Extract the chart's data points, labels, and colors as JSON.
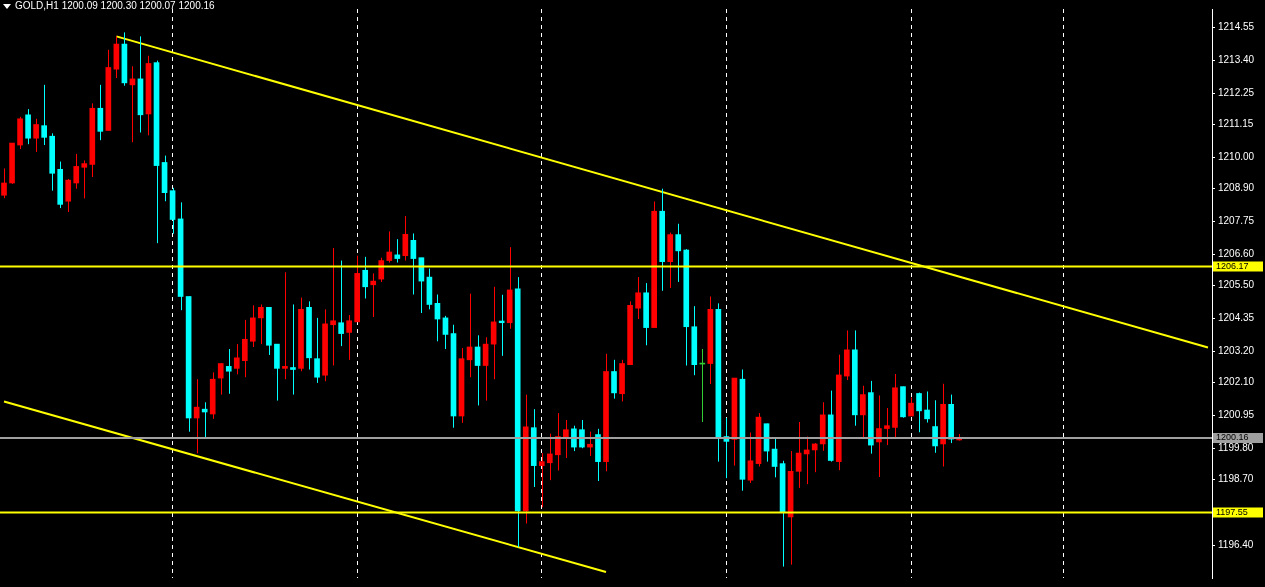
{
  "chart_data": {
    "type": "candlestick",
    "title": "GOLD,H1 1200.09 1200.30 1200.07 1200.16",
    "categories": [
      null,
      null,
      null,
      null,
      null,
      null,
      null,
      null,
      null,
      null,
      null,
      null,
      null,
      null,
      null,
      null,
      null,
      null,
      null,
      null,
      null,
      null,
      null,
      null,
      null,
      null,
      null,
      null,
      null,
      null,
      null,
      null,
      null,
      null,
      null,
      null,
      null,
      null,
      null,
      null,
      null,
      null,
      null,
      null,
      null,
      null,
      null,
      null,
      null,
      null,
      null,
      null,
      null,
      null,
      null,
      null,
      null,
      null,
      null,
      null,
      null,
      null,
      null,
      null,
      null,
      null,
      null,
      null,
      null,
      null,
      null,
      null,
      null,
      null,
      null,
      null,
      null,
      null,
      null,
      null,
      null,
      null,
      null,
      null,
      null,
      null,
      null,
      null,
      null,
      null,
      null,
      null,
      null,
      null,
      null,
      null,
      null,
      null,
      null,
      null,
      null,
      null,
      null,
      null,
      null,
      null,
      null,
      null,
      null,
      null,
      null,
      null,
      null,
      null,
      null,
      null,
      null,
      null,
      null,
      null,
      null,
      null,
      null,
      null,
      null,
      null,
      null,
      null,
      null,
      null,
      null,
      null,
      null,
      null,
      null,
      null,
      null,
      null,
      null,
      null,
      null,
      null,
      null,
      null,
      null,
      null,
      null,
      null,
      null,
      null,
      null
    ],
    "ohlc": [
      [
        1208.67,
        1209.61,
        1208.57,
        1209.1
      ],
      [
        1209.1,
        1210.5,
        1209.07,
        1210.5
      ],
      [
        1210.43,
        1211.42,
        1210.29,
        1211.35
      ],
      [
        1211.49,
        1211.69,
        1210.46,
        1210.67
      ],
      [
        1210.67,
        1211.35,
        1210.19,
        1211.15
      ],
      [
        1211.11,
        1212.54,
        1210.43,
        1210.7
      ],
      [
        1210.74,
        1210.84,
        1208.83,
        1209.44
      ],
      [
        1209.58,
        1209.85,
        1208.22,
        1208.35
      ],
      [
        1208.46,
        1209.24,
        1208.08,
        1209.2
      ],
      [
        1209.1,
        1210.12,
        1208.9,
        1209.68
      ],
      [
        1209.65,
        1209.89,
        1208.56,
        1209.78
      ],
      [
        1209.75,
        1211.89,
        1209.31,
        1211.72
      ],
      [
        1211.72,
        1212.54,
        1210.6,
        1210.91
      ],
      [
        1210.94,
        1213.77,
        1210.94,
        1213.15
      ],
      [
        1213.09,
        1214.24,
        1212.78,
        1213.97
      ],
      [
        1213.97,
        1214.38,
        1212.51,
        1212.61
      ],
      [
        1212.54,
        1213.19,
        1210.53,
        1212.75
      ],
      [
        1212.75,
        1214.24,
        1210.87,
        1211.49
      ],
      [
        1211.52,
        1213.56,
        1210.77,
        1213.29
      ],
      [
        1213.32,
        1213.39,
        1206.99,
        1209.71
      ],
      [
        1209.82,
        1210.06,
        1208.46,
        1208.76
      ],
      [
        1208.83,
        1208.93,
        1207.32,
        1207.82
      ],
      [
        1207.84,
        1208.42,
        1204.64,
        1205.12
      ],
      [
        1205.12,
        1205.12,
        1200.38,
        1200.86
      ],
      [
        1200.86,
        1202.22,
        1199.62,
        1201.24
      ],
      [
        1201.17,
        1201.41,
        1200.18,
        1201.07
      ],
      [
        1201.0,
        1202.46,
        1200.83,
        1202.22
      ],
      [
        1202.26,
        1202.77,
        1201.68,
        1202.77
      ],
      [
        1202.67,
        1203.28,
        1201.71,
        1202.5
      ],
      [
        1202.6,
        1203.45,
        1202.39,
        1202.97
      ],
      [
        1202.87,
        1204.3,
        1202.29,
        1203.62
      ],
      [
        1203.55,
        1204.81,
        1203.35,
        1204.37
      ],
      [
        1204.37,
        1204.84,
        1203.45,
        1204.74
      ],
      [
        1204.74,
        1204.74,
        1203.07,
        1203.41
      ],
      [
        1203.45,
        1203.45,
        1201.47,
        1202.6
      ],
      [
        1202.6,
        1205.97,
        1202.22,
        1202.67
      ],
      [
        1202.63,
        1204.84,
        1201.68,
        1202.56
      ],
      [
        1202.6,
        1205.08,
        1202.5,
        1204.67
      ],
      [
        1204.74,
        1204.95,
        1202.56,
        1202.97
      ],
      [
        1202.94,
        1204.37,
        1202.09,
        1202.29
      ],
      [
        1202.36,
        1204.67,
        1202.15,
        1204.16
      ],
      [
        1204.13,
        1206.82,
        1202.7,
        1204.27
      ],
      [
        1204.2,
        1206.38,
        1203.38,
        1203.82
      ],
      [
        1203.86,
        1204.47,
        1202.9,
        1204.27
      ],
      [
        1204.23,
        1206.55,
        1204.23,
        1205.93
      ],
      [
        1206.04,
        1206.51,
        1205.05,
        1205.46
      ],
      [
        1205.53,
        1205.93,
        1204.4,
        1205.66
      ],
      [
        1205.73,
        1206.48,
        1205.63,
        1206.38
      ],
      [
        1206.38,
        1207.4,
        1206.31,
        1206.68
      ],
      [
        1206.58,
        1207.13,
        1206.31,
        1206.45
      ],
      [
        1206.55,
        1207.94,
        1206.38,
        1207.3
      ],
      [
        1207.09,
        1207.33,
        1205.19,
        1206.45
      ],
      [
        1206.48,
        1206.48,
        1204.54,
        1205.66
      ],
      [
        1205.8,
        1206.1,
        1204.67,
        1204.84
      ],
      [
        1204.88,
        1205.19,
        1203.55,
        1204.33
      ],
      [
        1204.37,
        1204.44,
        1203.28,
        1203.79
      ],
      [
        1203.82,
        1204.13,
        1200.52,
        1200.93
      ],
      [
        1200.93,
        1203.31,
        1200.69,
        1202.94
      ],
      [
        1202.9,
        1205.22,
        1202.29,
        1203.35
      ],
      [
        1203.35,
        1203.76,
        1201.3,
        1202.7
      ],
      [
        1202.7,
        1203.69,
        1201.47,
        1203.45
      ],
      [
        1203.45,
        1205.46,
        1202.22,
        1204.23
      ],
      [
        1204.26,
        1205.18,
        1203.04,
        1204.2
      ],
      [
        1204.2,
        1206.85,
        1203.99,
        1205.35
      ],
      [
        1205.39,
        1205.8,
        1196.33,
        1197.6
      ],
      [
        1197.6,
        1201.68,
        1197.16,
        1200.55
      ],
      [
        1200.52,
        1201.17,
        1198.44,
        1199.19
      ],
      [
        1199.19,
        1199.63,
        1197.73,
        1199.33
      ],
      [
        1199.29,
        1200.31,
        1198.68,
        1199.6
      ],
      [
        1199.57,
        1201.03,
        1199.02,
        1200.21
      ],
      [
        1200.18,
        1200.79,
        1199.46,
        1200.45
      ],
      [
        1200.48,
        1200.59,
        1199.7,
        1199.84
      ],
      [
        1200.45,
        1200.79,
        1199.8,
        1199.84
      ],
      [
        1199.84,
        1200.38,
        1199.53,
        1199.94
      ],
      [
        1200.28,
        1200.48,
        1198.65,
        1199.33
      ],
      [
        1199.33,
        1203.11,
        1198.99,
        1202.49
      ],
      [
        1202.49,
        1202.9,
        1201.54,
        1201.74
      ],
      [
        1201.71,
        1202.9,
        1201.44,
        1202.77
      ],
      [
        1202.73,
        1204.95,
        1202.73,
        1204.81
      ],
      [
        1204.71,
        1205.8,
        1204.33,
        1205.25
      ],
      [
        1205.25,
        1205.59,
        1203.41,
        1204.03
      ],
      [
        1204.03,
        1208.45,
        1204.03,
        1208.11
      ],
      [
        1208.11,
        1208.9,
        1205.32,
        1206.34
      ],
      [
        1206.34,
        1207.36,
        1205.42,
        1207.29
      ],
      [
        1207.29,
        1207.67,
        1205.63,
        1206.72
      ],
      [
        1206.75,
        1206.78,
        1202.7,
        1204.06
      ],
      [
        1204.06,
        1204.78,
        1202.36,
        1202.73
      ],
      [
        1202.75,
        1203.28,
        1200.72,
        1202.75
      ],
      [
        1202.77,
        1205.12,
        1202.05,
        1204.67
      ],
      [
        1204.67,
        1204.88,
        1199.33,
        1200.18
      ],
      [
        1200.21,
        1200.86,
        1198.75,
        1200.04
      ],
      [
        1200.11,
        1202.26,
        1199.19,
        1202.26
      ],
      [
        1202.22,
        1202.56,
        1198.31,
        1198.71
      ],
      [
        1198.68,
        1200.35,
        1198.58,
        1199.36
      ],
      [
        1199.26,
        1201.03,
        1199.16,
        1200.89
      ],
      [
        1200.66,
        1200.66,
        1199.33,
        1199.7
      ],
      [
        1199.77,
        1200.18,
        1198.78,
        1199.16
      ],
      [
        1199.26,
        1199.36,
        1195.65,
        1197.56
      ],
      [
        1197.39,
        1199.7,
        1195.72,
        1198.99
      ],
      [
        1198.99,
        1200.72,
        1198.41,
        1199.63
      ],
      [
        1199.6,
        1200.21,
        1198.54,
        1199.74
      ],
      [
        1199.74,
        1199.98,
        1198.96,
        1199.95
      ],
      [
        1199.95,
        1201.41,
        1199.71,
        1200.97
      ],
      [
        1200.97,
        1201.82,
        1199.33,
        1199.37
      ],
      [
        1199.33,
        1203.08,
        1199.03,
        1202.37
      ],
      [
        1202.33,
        1203.93,
        1202.19,
        1203.25
      ],
      [
        1203.25,
        1203.93,
        1200.59,
        1200.97
      ],
      [
        1200.97,
        1201.99,
        1200.19,
        1201.68
      ],
      [
        1201.75,
        1202.16,
        1199.61,
        1199.91
      ],
      [
        1200.02,
        1201.65,
        1198.79,
        1200.49
      ],
      [
        1200.49,
        1201.21,
        1199.91,
        1200.59
      ],
      [
        1200.53,
        1202.4,
        1200.15,
        1201.92
      ],
      [
        1201.96,
        1201.96,
        1200.87,
        1200.9
      ],
      [
        1200.93,
        1201.58,
        1200.93,
        1201.38
      ],
      [
        1201.72,
        1201.75,
        1200.36,
        1201.11
      ],
      [
        1201.14,
        1201.79,
        1200.7,
        1200.83
      ],
      [
        1200.56,
        1201.48,
        1199.64,
        1199.88
      ],
      [
        1199.95,
        1202.06,
        1199.16,
        1201.34
      ],
      [
        1201.34,
        1201.68,
        1199.98,
        1200.12
      ],
      [
        1200.09,
        1200.3,
        1200.07,
        1200.16
      ],
      null,
      null,
      null,
      null,
      null,
      null,
      null,
      null,
      null,
      null,
      null,
      null,
      null,
      null,
      null,
      null,
      null,
      null,
      null,
      null,
      null,
      null,
      null,
      null,
      null,
      null,
      null,
      null,
      null,
      null,
      null
    ],
    "colors": [
      "#ff0000",
      "#ff0000",
      "#ff0000",
      "#00ffff",
      "#ff0000",
      "#00ffff",
      "#00ffff",
      "#00ffff",
      "#ff0000",
      "#ff0000",
      "#ff0000",
      "#ff0000",
      "#00ffff",
      "#ff0000",
      "#ff0000",
      "#00ffff",
      "#ff0000",
      "#00ffff",
      "#ff0000",
      "#00ffff",
      "#00ffff",
      "#00ffff",
      "#00ffff",
      "#00ffff",
      "#ff0000",
      "#00ffff",
      "#ff0000",
      "#ff0000",
      "#00ffff",
      "#ff0000",
      "#ff0000",
      "#ff0000",
      "#ff0000",
      "#00ffff",
      "#00ffff",
      "#ff0000",
      "#00ffff",
      "#ff0000",
      "#00ffff",
      "#00ffff",
      "#ff0000",
      "#ff0000",
      "#00ffff",
      "#ff0000",
      "#ff0000",
      "#00ffff",
      "#ff0000",
      "#ff0000",
      "#ff0000",
      "#00ffff",
      "#ff0000",
      "#00ffff",
      "#00ffff",
      "#00ffff",
      "#00ffff",
      "#00ffff",
      "#00ffff",
      "#ff0000",
      "#ff0000",
      "#00ffff",
      "#ff0000",
      "#ff0000",
      "#00ffff",
      "#ff0000",
      "#00ffff",
      "#ff0000",
      "#00ffff",
      "#ff0000",
      "#ff0000",
      "#ff0000",
      "#ff0000",
      "#00ffff",
      "#00ffff",
      "#ff0000",
      "#00ffff",
      "#ff0000",
      "#00ffff",
      "#ff0000",
      "#ff0000",
      "#ff0000",
      "#00ffff",
      "#ff0000",
      "#00ffff",
      "#ff0000",
      "#00ffff",
      "#00ffff",
      "#00ffff",
      "#32cd32",
      "#ff0000",
      "#00ffff",
      "#00ffff",
      "#ff0000",
      "#00ffff",
      "#ff0000",
      "#ff0000",
      "#00ffff",
      "#00ffff",
      "#00ffff",
      "#ff0000",
      "#ff0000",
      "#ff0000",
      "#ff0000",
      "#ff0000",
      "#00ffff",
      "#ff0000",
      "#ff0000",
      "#00ffff",
      "#ff0000",
      "#00ffff",
      "#ff0000",
      "#ff0000",
      "#ff0000",
      "#00ffff",
      "#ff0000",
      "#00ffff",
      "#00ffff",
      "#00ffff",
      "#ff0000",
      "#00ffff",
      "#ff0000",
      null,
      null,
      null,
      null,
      null,
      null,
      null,
      null,
      null,
      null,
      null,
      null,
      null,
      null,
      null,
      null,
      null,
      null,
      null,
      null,
      null,
      null,
      null,
      null,
      null,
      null,
      null,
      null,
      null,
      null,
      null
    ],
    "series": [
      {
        "type": "line",
        "color": "#ffff00",
        "values": [
          null,
          null,
          null,
          null,
          null,
          null,
          null,
          null,
          null,
          null,
          null,
          null,
          null,
          null,
          1214.24,
          null,
          null,
          null,
          null,
          null,
          null,
          null,
          null,
          null,
          null,
          null,
          null,
          null,
          null,
          null,
          null,
          null,
          null,
          null,
          null,
          null,
          null,
          null,
          null,
          null,
          null,
          null,
          null,
          null,
          null,
          null,
          null,
          null,
          null,
          null,
          null,
          null,
          null,
          null,
          null,
          null,
          null,
          null,
          null,
          null,
          null,
          null,
          null,
          null,
          null,
          null,
          null,
          null,
          null,
          null,
          null,
          null,
          null,
          null,
          null,
          null,
          null,
          null,
          null,
          null,
          null,
          null,
          null,
          null,
          null,
          null,
          null,
          null,
          null,
          null,
          null,
          null,
          null,
          null,
          null,
          null,
          null,
          null,
          null,
          null,
          null,
          null,
          null,
          null,
          null,
          null,
          null,
          null,
          null,
          null,
          null,
          null,
          null,
          null,
          null,
          null,
          null,
          null,
          null,
          null,
          null,
          null,
          null,
          null,
          null,
          null,
          null,
          null,
          null,
          null,
          null,
          null,
          null,
          null,
          null,
          null,
          null,
          null,
          null,
          null,
          null,
          null,
          null,
          null,
          null,
          null,
          null,
          null,
          null,
          null,
          1203.33
        ]
      },
      {
        "type": "line",
        "color": "#ffff00",
        "values": [
          1201.44,
          null,
          null,
          null,
          null,
          null,
          null,
          null,
          null,
          null,
          null,
          null,
          null,
          null,
          null,
          null,
          null,
          null,
          null,
          null,
          null,
          null,
          null,
          null,
          null,
          null,
          null,
          null,
          null,
          null,
          null,
          null,
          null,
          null,
          null,
          null,
          null,
          null,
          null,
          null,
          null,
          null,
          null,
          null,
          null,
          null,
          null,
          null,
          null,
          null,
          null,
          null,
          null,
          null,
          null,
          null,
          null,
          null,
          null,
          null,
          null,
          null,
          null,
          null,
          null,
          null,
          null,
          null,
          null,
          null,
          null,
          null,
          null,
          null,
          null,
          1195.46,
          null,
          null,
          null,
          null,
          null,
          null,
          null,
          null,
          null,
          null,
          null,
          null,
          null,
          null,
          null,
          null,
          null,
          null,
          null,
          null,
          null,
          null,
          null,
          null,
          null,
          null,
          null,
          null,
          null,
          null,
          null,
          null,
          null,
          null,
          null,
          null,
          null,
          null,
          null,
          null,
          null,
          null,
          null,
          null,
          null,
          null,
          null,
          null,
          null,
          null,
          null,
          null,
          null,
          null,
          null,
          null,
          null,
          null,
          null,
          null,
          null,
          null,
          null,
          null,
          null,
          null,
          null,
          null,
          null,
          null,
          null,
          null,
          null,
          null,
          null
        ]
      }
    ],
    "ref_lines": [
      {
        "axis": "y",
        "value": 1206.17,
        "label": "1206.17",
        "color": "#ffff00"
      },
      {
        "axis": "y",
        "value": 1197.55,
        "label": "1197.55",
        "color": "#ffff00"
      },
      {
        "axis": "y",
        "value": 1200.16,
        "label": "1200.16",
        "color": "#a0a0a0"
      }
    ],
    "ylim": [
      1195.25,
      1215.2
    ],
    "yticks": [
      {
        "value": 1196.4,
        "label": "1196.40"
      },
      {
        "value": 1198.7,
        "label": "1198.70"
      },
      {
        "value": 1199.8,
        "label": "1199.80"
      },
      {
        "value": 1200.95,
        "label": "1200.95"
      },
      {
        "value": 1202.1,
        "label": "1202.10"
      },
      {
        "value": 1203.2,
        "label": "1203.20"
      },
      {
        "value": 1204.35,
        "label": "1204.35"
      },
      {
        "value": 1205.5,
        "label": "1205.50"
      },
      {
        "value": 1206.6,
        "label": "1206.60"
      },
      {
        "value": 1207.75,
        "label": "1207.75"
      },
      {
        "value": 1208.9,
        "label": "1208.90"
      },
      {
        "value": 1210,
        "label": "1210.00"
      },
      {
        "value": 1211.15,
        "label": "1211.15"
      },
      {
        "value": 1212.25,
        "label": "1212.25"
      },
      {
        "value": 1213.4,
        "label": "1213.40"
      },
      {
        "value": 1214.55,
        "label": "1214.55"
      }
    ],
    "grid": "x",
    "tick_labels": "y"
  }
}
